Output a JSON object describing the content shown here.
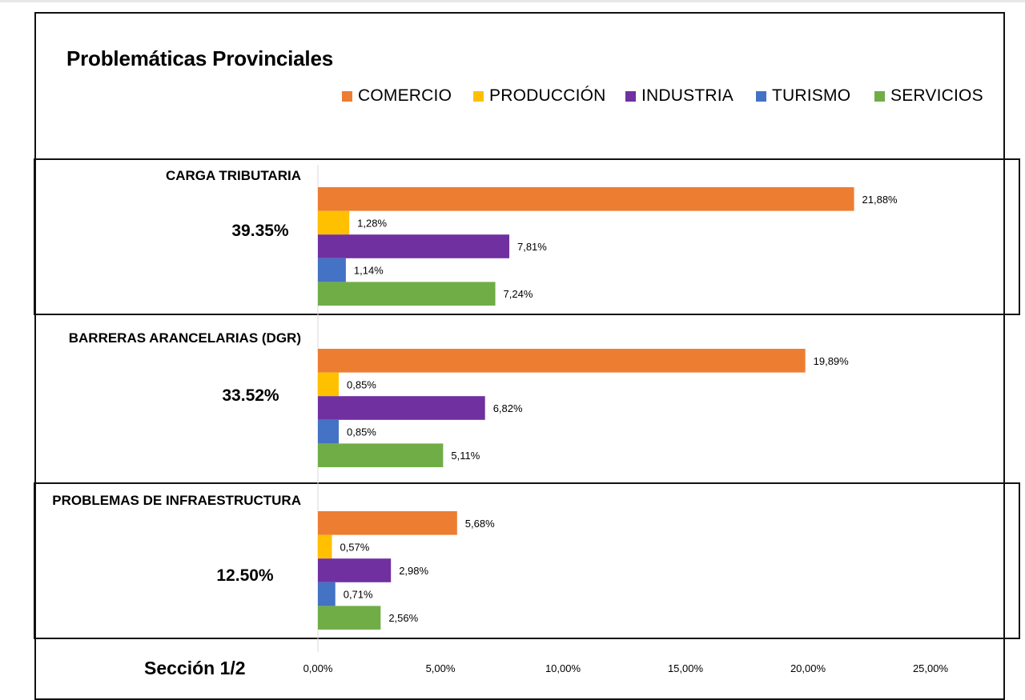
{
  "title": "Problemáticas Provinciales",
  "footer": "Sección 1/2",
  "legend": [
    {
      "name": "COMERCIO",
      "color": "#ED7D31"
    },
    {
      "name": "PRODUCCIÓN",
      "color": "#FFC000"
    },
    {
      "name": "INDUSTRIA",
      "color": "#7030A0"
    },
    {
      "name": "TURISMO",
      "color": "#4472C4"
    },
    {
      "name": "SERVICIOS",
      "color": "#70AD47"
    }
  ],
  "chart_data": {
    "type": "bar",
    "orientation": "horizontal",
    "title": "Problemáticas Provinciales",
    "categories": [
      "CARGA TRIBUTARIA",
      "BARRERAS ARANCELARIAS (DGR)",
      "PROBLEMAS DE INFRAESTRUCTURA"
    ],
    "category_totals": [
      "39.35%",
      "33.52%",
      "12.50%"
    ],
    "series": [
      {
        "name": "COMERCIO",
        "color": "#ED7D31",
        "values": [
          21.88,
          19.89,
          5.68
        ],
        "labels": [
          "21,88%",
          "19,89%",
          "5,68%"
        ]
      },
      {
        "name": "PRODUCCIÓN",
        "color": "#FFC000",
        "values": [
          1.28,
          0.85,
          0.57
        ],
        "labels": [
          "1,28%",
          "0,85%",
          "0,57%"
        ]
      },
      {
        "name": "INDUSTRIA",
        "color": "#7030A0",
        "values": [
          7.81,
          6.82,
          2.98
        ],
        "labels": [
          "7,81%",
          "6,82%",
          "2,98%"
        ]
      },
      {
        "name": "TURISMO",
        "color": "#4472C4",
        "values": [
          1.14,
          0.85,
          0.71
        ],
        "labels": [
          "1,14%",
          "0,85%",
          "0,71%"
        ]
      },
      {
        "name": "SERVICIOS",
        "color": "#70AD47",
        "values": [
          7.24,
          5.11,
          2.56
        ],
        "labels": [
          "7,24%",
          "5,11%",
          "2,56%"
        ]
      }
    ],
    "xlim": [
      0,
      25
    ],
    "xticks": [
      0,
      5,
      10,
      15,
      20,
      25
    ],
    "xtick_labels": [
      "0,00%",
      "5,00%",
      "10,00%",
      "15,00%",
      "20,00%",
      "25,00%"
    ],
    "legend_position": "top-right",
    "grid": false
  }
}
